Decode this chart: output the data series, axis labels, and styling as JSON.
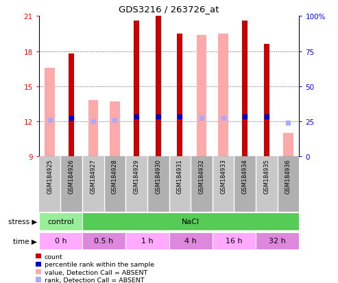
{
  "title": "GDS3216 / 263726_at",
  "samples": [
    "GSM184925",
    "GSM184926",
    "GSM184927",
    "GSM184928",
    "GSM184929",
    "GSM184930",
    "GSM184931",
    "GSM184932",
    "GSM184933",
    "GSM184934",
    "GSM184935",
    "GSM184936"
  ],
  "count_values": [
    null,
    17.8,
    null,
    null,
    20.6,
    21.0,
    19.5,
    null,
    null,
    20.6,
    18.6,
    null
  ],
  "value_absent": [
    16.6,
    null,
    13.8,
    13.7,
    null,
    null,
    null,
    19.4,
    19.5,
    null,
    null,
    11.0
  ],
  "percentile_rank": [
    null,
    12.3,
    null,
    null,
    12.4,
    12.4,
    12.4,
    null,
    null,
    12.4,
    12.4,
    null
  ],
  "rank_absent": [
    12.1,
    null,
    12.0,
    12.1,
    null,
    null,
    null,
    12.3,
    12.3,
    null,
    null,
    11.9
  ],
  "ylim_left": [
    9,
    21
  ],
  "ylim_right": [
    0,
    100
  ],
  "yticks_left": [
    9,
    12,
    15,
    18,
    21
  ],
  "yticks_right": [
    0,
    25,
    50,
    75,
    100
  ],
  "dark_red": "#cc0000",
  "pink": "#ffaaaa",
  "blue": "#0000cc",
  "light_blue": "#aaaaff",
  "grid_color": "#555555",
  "stress_groups": [
    {
      "label": "control",
      "start": 0,
      "end": 2,
      "color": "#99ee99"
    },
    {
      "label": "NaCl",
      "start": 2,
      "end": 12,
      "color": "#55cc55"
    }
  ],
  "time_groups": [
    {
      "label": "0 h",
      "start": 0,
      "end": 2,
      "color": "#ffaaff"
    },
    {
      "label": "0.5 h",
      "start": 2,
      "end": 4,
      "color": "#dd88dd"
    },
    {
      "label": "1 h",
      "start": 4,
      "end": 6,
      "color": "#ffaaff"
    },
    {
      "label": "4 h",
      "start": 6,
      "end": 8,
      "color": "#dd88dd"
    },
    {
      "label": "16 h",
      "start": 8,
      "end": 10,
      "color": "#ffaaff"
    },
    {
      "label": "32 h",
      "start": 10,
      "end": 12,
      "color": "#dd88dd"
    }
  ],
  "sample_bg_even": "#c8c8c8",
  "sample_bg_odd": "#b0b0b0",
  "legend_items": [
    {
      "label": "count",
      "color": "#cc0000"
    },
    {
      "label": "percentile rank within the sample",
      "color": "#0000cc"
    },
    {
      "label": "value, Detection Call = ABSENT",
      "color": "#ffaaaa"
    },
    {
      "label": "rank, Detection Call = ABSENT",
      "color": "#aaaaff"
    }
  ]
}
